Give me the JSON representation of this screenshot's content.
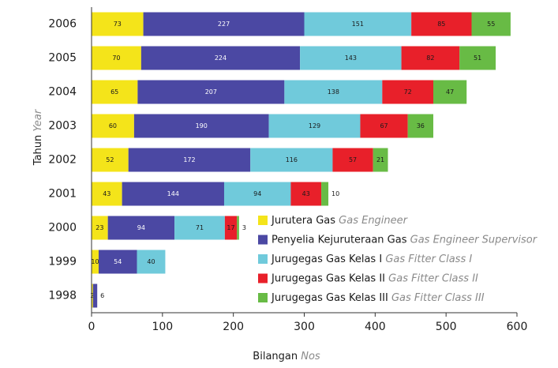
{
  "chart_data": {
    "type": "stacked_barh",
    "categories": [
      "2006",
      "2005",
      "2004",
      "2003",
      "2002",
      "2001",
      "2000",
      "1999",
      "1998"
    ],
    "series": [
      {
        "name": "Jurutera Gas",
        "name_en": "Gas Engineer",
        "color": "#f4e41a",
        "values": [
          73,
          70,
          65,
          60,
          52,
          43,
          23,
          10,
          2
        ]
      },
      {
        "name": "Penyelia Kejuruteraan Gas",
        "name_en": "Gas Engineer Supervisor",
        "color": "#4b48a3",
        "values": [
          227,
          224,
          207,
          190,
          172,
          144,
          94,
          54,
          6
        ]
      },
      {
        "name": "Jurugegas Gas Kelas I",
        "name_en": "Gas Fitter Class I",
        "color": "#70cadb",
        "values": [
          151,
          143,
          138,
          129,
          116,
          94,
          71,
          40,
          null
        ]
      },
      {
        "name": "Jurugegas Gas Kelas II",
        "name_en": "Gas Fitter Class II",
        "color": "#e8202a",
        "values": [
          85,
          82,
          72,
          67,
          57,
          43,
          17,
          null,
          null
        ]
      },
      {
        "name": "Jurugegas Gas Kelas III",
        "name_en": "Gas Fitter Class III",
        "color": "#68bb45",
        "values": [
          55,
          51,
          47,
          36,
          21,
          10,
          3,
          null,
          null
        ]
      }
    ],
    "xlim": [
      0,
      600
    ],
    "xticks": [
      0,
      100,
      200,
      300,
      400,
      500,
      600
    ],
    "xlabel": {
      "text": "Bilangan",
      "text_en": "Nos"
    },
    "ylabel": {
      "text": "Tahun",
      "text_en": "Year"
    }
  }
}
